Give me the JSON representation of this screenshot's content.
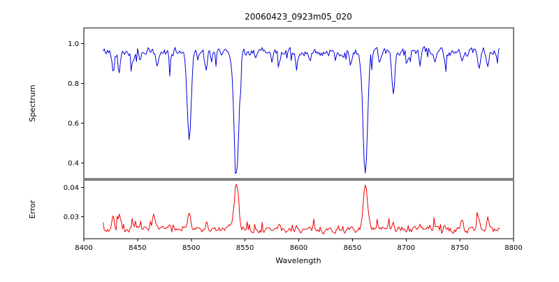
{
  "figure": {
    "background": "#ffffff",
    "frame_color": "#000000"
  },
  "chart_data": {
    "type": "line",
    "title": "20060423_0923m05_020",
    "xlabel": "Wavelength",
    "legend": "none",
    "grid": false,
    "xlim": [
      8400,
      8800
    ],
    "xticks": [
      8400,
      8450,
      8500,
      8550,
      8600,
      8650,
      8700,
      8750,
      8800
    ],
    "x_start": 8418,
    "x_end": 8787,
    "step": 1,
    "panels": [
      {
        "ylabel": "Spectrum",
        "color": "#0000dd",
        "ylim": [
          0.32,
          1.08
        ],
        "yticks": [
          0.4,
          0.6,
          0.8,
          1.0
        ],
        "ytick_decimals": 1,
        "baseline": 0.96,
        "noise_amplitude": 0.018,
        "noise_smooth": 0.5,
        "spike_probability": 0.1,
        "spike_max": 0.08,
        "spike_sign": -1,
        "seed": 42,
        "feature_sign": -1,
        "features": [
          {
            "c": 8427,
            "d": 0.08,
            "w": 1.0
          },
          {
            "c": 8433,
            "d": 0.11,
            "w": 1.0
          },
          {
            "c": 8445,
            "d": 0.06,
            "w": 1.0
          },
          {
            "c": 8452,
            "d": 0.05,
            "w": 0.9
          },
          {
            "c": 8468,
            "d": 0.09,
            "w": 1.1
          },
          {
            "c": 8480,
            "d": 0.06,
            "w": 1.0
          },
          {
            "c": 8498,
            "d": 0.43,
            "w": 1.8
          },
          {
            "c": 8506,
            "d": 0.05,
            "w": 0.9
          },
          {
            "c": 8514,
            "d": 0.1,
            "w": 1.1
          },
          {
            "c": 8519,
            "d": 0.06,
            "w": 0.9
          },
          {
            "c": 8542,
            "d": 0.61,
            "w": 2.2
          },
          {
            "c": 8560,
            "d": 0.05,
            "w": 0.9
          },
          {
            "c": 8575,
            "d": 0.05,
            "w": 0.9
          },
          {
            "c": 8582,
            "d": 0.07,
            "w": 1.0
          },
          {
            "c": 8598,
            "d": 0.08,
            "w": 1.0
          },
          {
            "c": 8611,
            "d": 0.05,
            "w": 0.9
          },
          {
            "c": 8634,
            "d": 0.05,
            "w": 0.9
          },
          {
            "c": 8648,
            "d": 0.05,
            "w": 0.9
          },
          {
            "c": 8662,
            "d": 0.6,
            "w": 2.2
          },
          {
            "c": 8675,
            "d": 0.05,
            "w": 0.9
          },
          {
            "c": 8688,
            "d": 0.2,
            "w": 1.4
          },
          {
            "c": 8702,
            "d": 0.05,
            "w": 0.9
          },
          {
            "c": 8713,
            "d": 0.07,
            "w": 1.0
          },
          {
            "c": 8727,
            "d": 0.05,
            "w": 0.9
          },
          {
            "c": 8736,
            "d": 0.06,
            "w": 1.0
          },
          {
            "c": 8752,
            "d": 0.06,
            "w": 1.0
          },
          {
            "c": 8768,
            "d": 0.1,
            "w": 1.1
          },
          {
            "c": 8776,
            "d": 0.07,
            "w": 1.0
          }
        ]
      },
      {
        "ylabel": "Error",
        "color": "#ee0000",
        "ylim": [
          0.0225,
          0.0425
        ],
        "yticks": [
          0.03,
          0.04
        ],
        "ytick_decimals": 2,
        "baseline": 0.0255,
        "noise_amplitude": 0.0009,
        "noise_smooth": 0.5,
        "spike_probability": 0.12,
        "spike_max": 0.0035,
        "spike_sign": 1,
        "seed": 7,
        "feature_sign": 1,
        "features": [
          {
            "c": 8427,
            "d": 0.004,
            "w": 1.2
          },
          {
            "c": 8433,
            "d": 0.005,
            "w": 1.2
          },
          {
            "c": 8445,
            "d": 0.002,
            "w": 1.0
          },
          {
            "c": 8465,
            "d": 0.004,
            "w": 1.2
          },
          {
            "c": 8480,
            "d": 0.002,
            "w": 1.0
          },
          {
            "c": 8498,
            "d": 0.006,
            "w": 1.5
          },
          {
            "c": 8514,
            "d": 0.0025,
            "w": 1.0
          },
          {
            "c": 8542,
            "d": 0.0155,
            "w": 2.0
          },
          {
            "c": 8582,
            "d": 0.0015,
            "w": 1.0
          },
          {
            "c": 8598,
            "d": 0.0015,
            "w": 1.0
          },
          {
            "c": 8662,
            "d": 0.0145,
            "w": 2.0
          },
          {
            "c": 8688,
            "d": 0.003,
            "w": 1.2
          },
          {
            "c": 8713,
            "d": 0.0015,
            "w": 1.0
          },
          {
            "c": 8736,
            "d": 0.0015,
            "w": 1.0
          },
          {
            "c": 8752,
            "d": 0.003,
            "w": 1.2
          },
          {
            "c": 8767,
            "d": 0.005,
            "w": 1.5
          },
          {
            "c": 8776,
            "d": 0.004,
            "w": 1.2
          }
        ]
      }
    ]
  }
}
